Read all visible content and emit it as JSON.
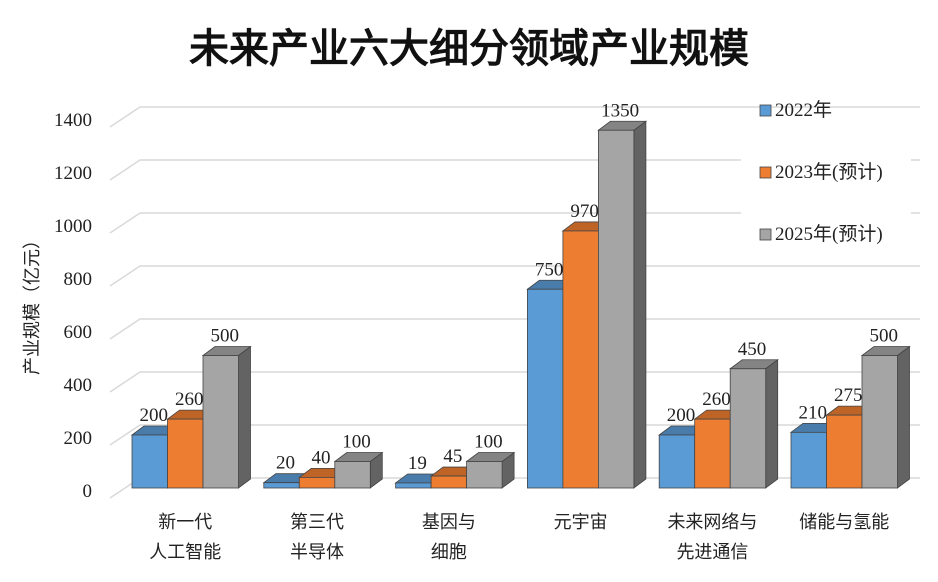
{
  "chart_data": {
    "type": "bar",
    "title": "未来产业六大细分领域产业规模",
    "xlabel": "",
    "ylabel": "产业规模（亿元）",
    "ylim": [
      0,
      1400
    ],
    "yticks": [
      0,
      200,
      400,
      600,
      800,
      1000,
      1200,
      1400
    ],
    "grid": true,
    "three_d": true,
    "legend_position": "top-right",
    "categories": [
      [
        "新一代",
        "人工智能"
      ],
      [
        "第三代",
        "半导体"
      ],
      [
        "基因与",
        "细胞"
      ],
      [
        "元宇宙"
      ],
      [
        "未来网络与",
        "先进通信"
      ],
      [
        "储能与氢能"
      ]
    ],
    "series": [
      {
        "name": "2022年",
        "color": "#5b9bd5",
        "values": [
          200,
          20,
          19,
          750,
          200,
          210
        ]
      },
      {
        "name": "2023年(预计)",
        "color": "#ed7d31",
        "values": [
          260,
          40,
          45,
          970,
          260,
          275
        ]
      },
      {
        "name": "2025年(预计)",
        "color": "#a5a5a5",
        "values": [
          500,
          100,
          100,
          1350,
          450,
          500
        ]
      }
    ]
  }
}
